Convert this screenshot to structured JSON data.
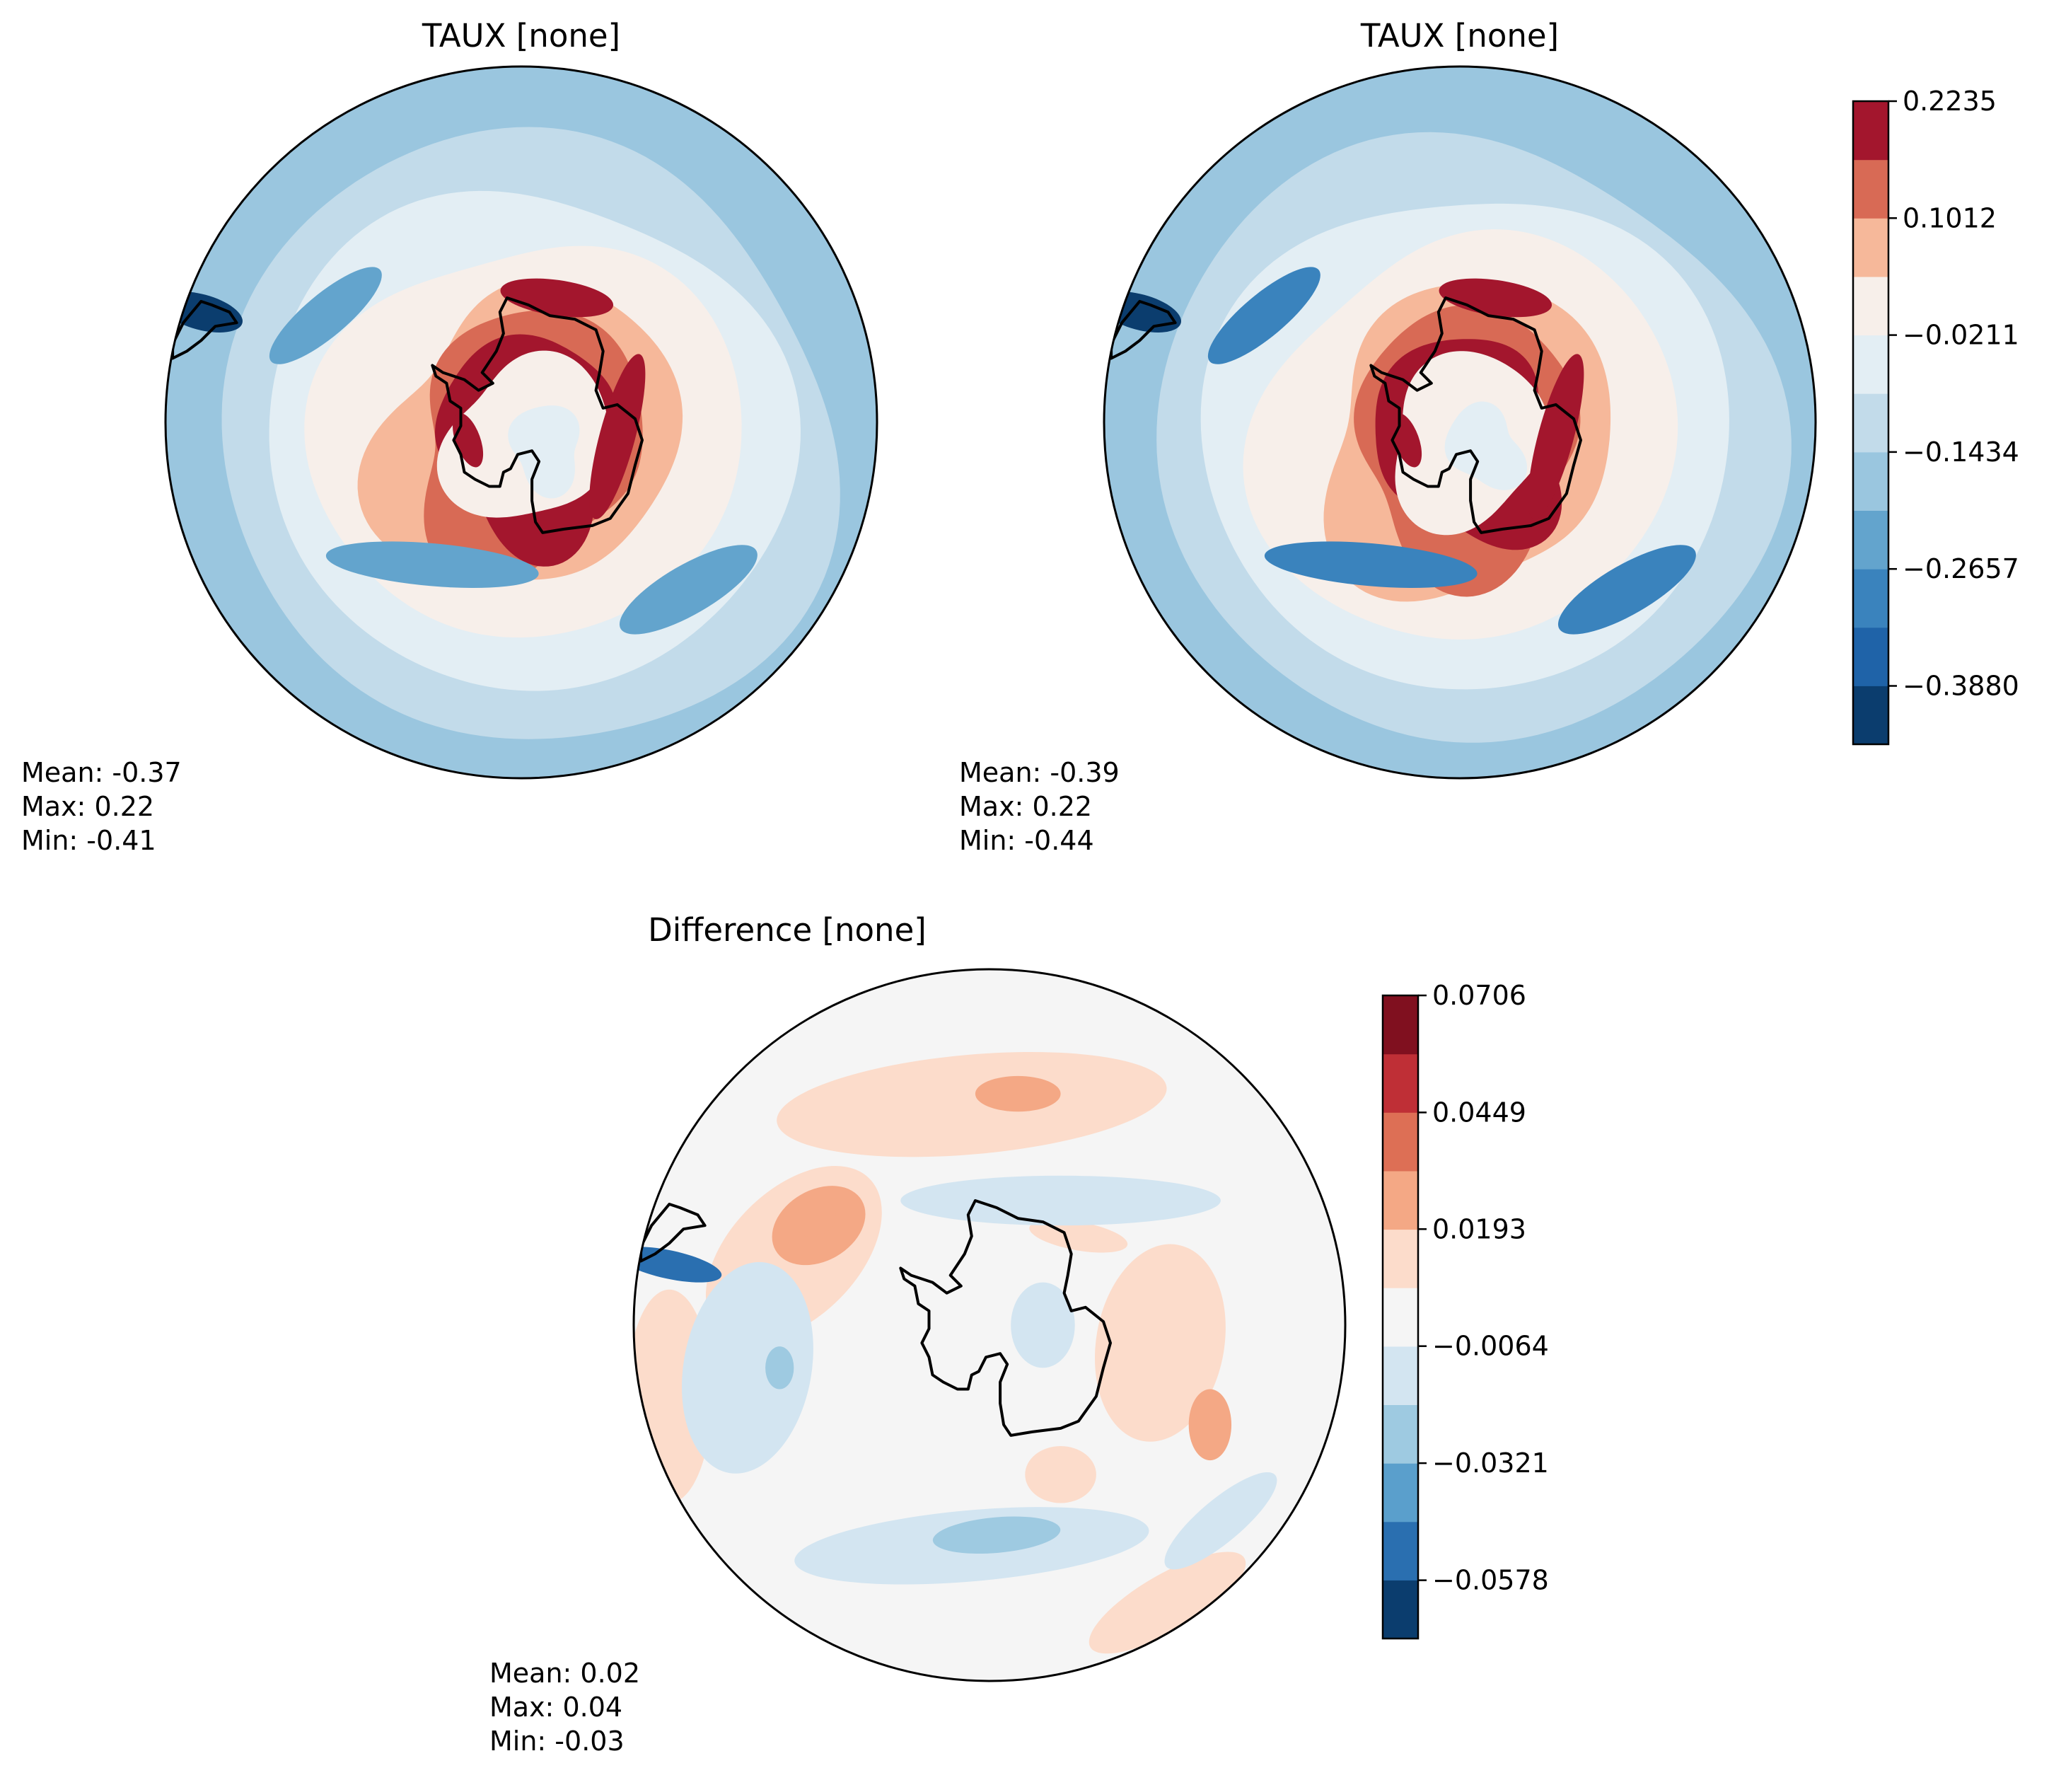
{
  "chart_data": [
    {
      "type": "heatmap",
      "projection": "south-polar-stereographic",
      "title": "TAUX [none]",
      "stats": {
        "mean": "Mean: -0.37",
        "max": "Max:  0.22",
        "min": "Min: -0.41"
      },
      "zlim": [
        -0.449,
        0.2235
      ],
      "bands": [
        -0.4,
        -0.26,
        -0.2,
        -0.13,
        -0.07,
        -0.01,
        0.05,
        0.11,
        0.17,
        0.22
      ]
    },
    {
      "type": "heatmap",
      "projection": "south-polar-stereographic",
      "title": "TAUX [none]",
      "stats": {
        "mean": "Mean: -0.39",
        "max": "Max:  0.22",
        "min": "Min: -0.44"
      },
      "zlim": [
        -0.449,
        0.2235
      ],
      "bands": [
        -0.41,
        -0.27,
        -0.2,
        -0.14,
        -0.08,
        -0.01,
        0.05,
        0.11,
        0.17,
        0.22
      ]
    },
    {
      "type": "heatmap",
      "projection": "south-polar-stereographic",
      "title": "Difference [none]",
      "stats": {
        "mean": "Mean:  0.02",
        "max": "Max:  0.04",
        "min": "Min: -0.03"
      },
      "zlim": [
        -0.0706,
        0.0706
      ],
      "bands": [
        -0.05,
        -0.03,
        -0.02,
        -0.01,
        0.0,
        0.01,
        0.02,
        0.03,
        0.05
      ]
    }
  ],
  "colorbars": [
    {
      "ticks": [
        "0.2235",
        "0.1012",
        "−0.0211",
        "−0.1434",
        "−0.2657",
        "−0.3880"
      ],
      "levels": [
        0.2235,
        0.1012,
        -0.0211,
        -0.1434,
        -0.2657,
        -0.388
      ],
      "range": [
        -0.449,
        0.2235
      ],
      "colors": [
        "#0b3d6e",
        "#1f63a8",
        "#3a83bd",
        "#63a4cd",
        "#9ac6df",
        "#c2dbea",
        "#e3eef4",
        "#f7efea",
        "#f6b89a",
        "#d86a55",
        "#a3162d"
      ]
    },
    {
      "ticks": [
        "0.0706",
        "0.0449",
        "0.0193",
        "−0.0064",
        "−0.0321",
        "−0.0578"
      ],
      "levels": [
        0.0706,
        0.0449,
        0.0193,
        -0.0064,
        -0.0321,
        -0.0578
      ],
      "range": [
        -0.0706,
        0.0706
      ],
      "colors": [
        "#0b3d6e",
        "#2a6fb0",
        "#5a9fcc",
        "#9ecae1",
        "#d3e5f1",
        "#f5f5f5",
        "#fcdccb",
        "#f4a885",
        "#dd6f55",
        "#bf2f36",
        "#80101f"
      ]
    }
  ]
}
